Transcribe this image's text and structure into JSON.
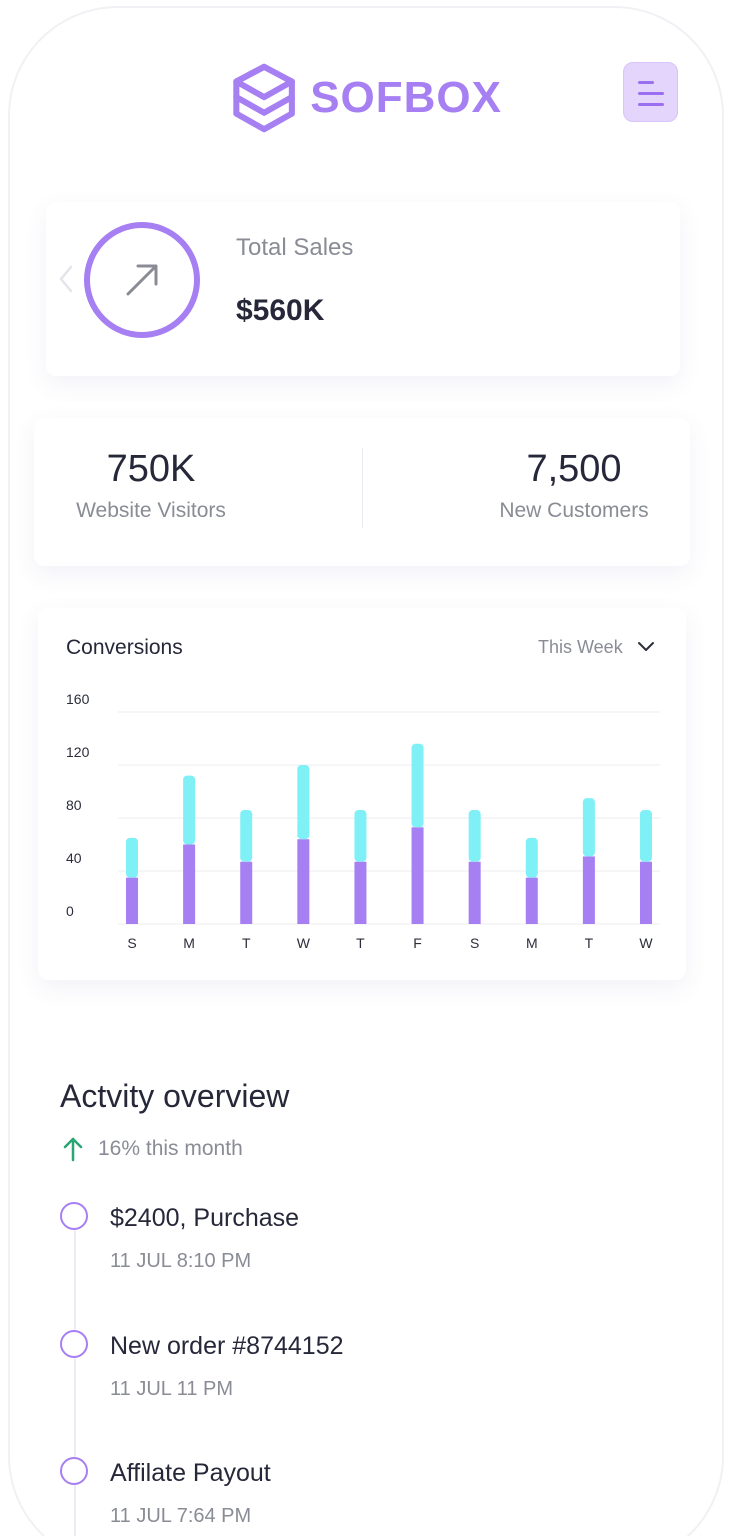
{
  "brand": {
    "name": "SOFBOX",
    "color": "#a67ff2",
    "logo_icon": "box-logo-icon"
  },
  "header": {
    "menu_icon": "menu-icon"
  },
  "sales": {
    "label": "Total Sales",
    "value": "$560K",
    "icon": "arrow-up-right-icon",
    "nav_icon": "chevron-left-icon"
  },
  "stats": [
    {
      "value": "750K",
      "label": "Website Visitors"
    },
    {
      "value": "7,500",
      "label": "New Customers"
    }
  ],
  "conversions": {
    "title": "Conversions",
    "filter_label": "This Week",
    "filter_icon": "chevron-down-icon"
  },
  "chart_data": {
    "type": "bar",
    "stacked": true,
    "categories": [
      "S",
      "M",
      "T",
      "W",
      "T",
      "F",
      "S",
      "M",
      "T",
      "W"
    ],
    "series": [
      {
        "color": "#a67ff2",
        "values": [
          35,
          60,
          47,
          64,
          47,
          73,
          47,
          35,
          51,
          47
        ]
      },
      {
        "color": "#7ff0f5",
        "values": [
          30,
          52,
          39,
          56,
          39,
          63,
          39,
          30,
          44,
          39
        ]
      }
    ],
    "y_ticks": [
      "160",
      "120",
      "80",
      "40",
      "0"
    ],
    "ylim": [
      0,
      160
    ],
    "grid": true
  },
  "activity": {
    "title": "Actvity overview",
    "trend_text": "16% this month",
    "trend_color": "#2aa574",
    "items": [
      {
        "title": "$2400, Purchase",
        "time": "11 JUL 8:10 PM"
      },
      {
        "title": "New order #8744152",
        "time": "11 JUL 11 PM"
      },
      {
        "title": "Affilate Payout",
        "time": "11 JUL 7:64 PM"
      }
    ]
  }
}
